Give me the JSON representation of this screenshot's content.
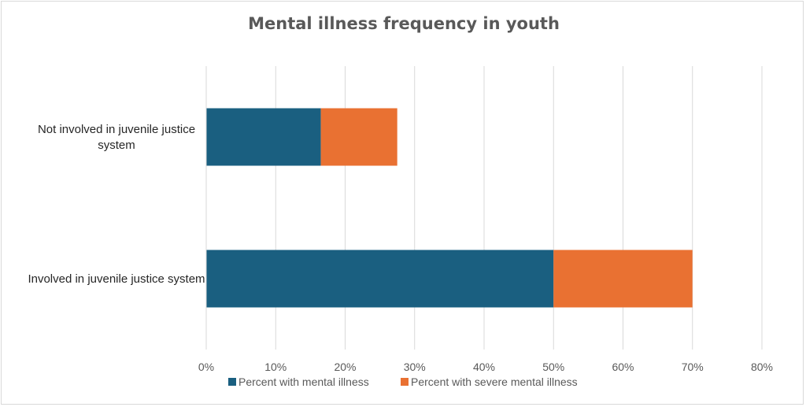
{
  "chart_data": {
    "type": "bar",
    "orientation": "horizontal",
    "stacked": true,
    "title": "Mental illness frequency in youth",
    "categories": [
      "Not involved in juvenile justice system",
      "Involved in juvenile justice system"
    ],
    "category_label_lines": [
      [
        "Not involved in juvenile justice",
        "system"
      ],
      [
        "Involved in juvenile justice system"
      ]
    ],
    "series": [
      {
        "name": "Percent with mental illness",
        "color": "#1a5f80",
        "values": [
          16.5,
          50
        ]
      },
      {
        "name": "Percent with severe mental illness",
        "color": "#e97132",
        "values": [
          11,
          20
        ]
      }
    ],
    "xlim": [
      0,
      80
    ],
    "x_ticks": [
      "0%",
      "10%",
      "20%",
      "30%",
      "40%",
      "50%",
      "60%",
      "70%",
      "80%"
    ],
    "grid": true,
    "legend_position": "bottom"
  }
}
